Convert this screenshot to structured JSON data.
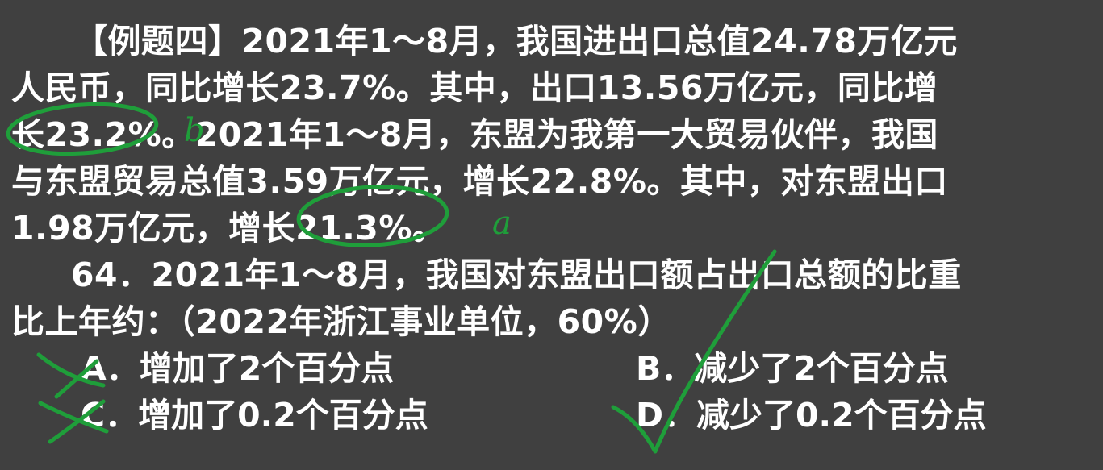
{
  "problem": {
    "lines": [
      "【例题四】2021年1～8月，我国进出口总值24.78万亿元",
      "人民币，同比增长23.7%。其中，出口13.56万亿元，同比增",
      "长23.2%。2021年1～8月，东盟为我第一大贸易伙伴，我国",
      "与东盟贸易总值3.59万亿元，增长22.8%。其中，对东盟出口",
      "1.98万亿元，增长21.3%。"
    ]
  },
  "question": {
    "line1": "64．2021年1～8月，我国对东盟出口额占出口总额的比重",
    "line2": "比上年约：（2022年浙江事业单位，60%）"
  },
  "options": {
    "a": "A．增加了2个百分点",
    "b": "B．减少了2个百分点",
    "c": "C．增加了0.2个百分点",
    "d": "D．减少了0.2个百分点"
  },
  "annotations": {
    "ink_color": "#1f9e3a",
    "mark_b": "b",
    "mark_a": "a",
    "correct_option": "D",
    "crossed_options": [
      "A",
      "C"
    ]
  }
}
